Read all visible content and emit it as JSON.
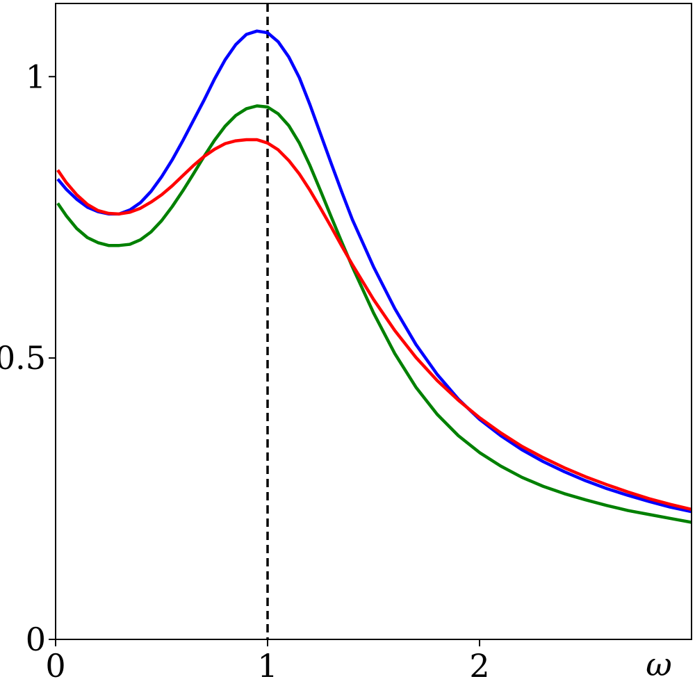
{
  "chart_data": {
    "type": "line",
    "title": "",
    "xlabel": "ω",
    "ylabel": "",
    "xlim": [
      0,
      3
    ],
    "ylim": [
      0,
      1.13
    ],
    "grid": false,
    "legend": "none",
    "x_ticks": [
      {
        "value": 0,
        "label": "0"
      },
      {
        "value": 1,
        "label": "1"
      },
      {
        "value": 2,
        "label": "2"
      }
    ],
    "y_ticks": [
      {
        "value": 0,
        "label": "0"
      },
      {
        "value": 0.5,
        "label": "0.5"
      },
      {
        "value": 1,
        "label": "1"
      }
    ],
    "reference_lines": [
      {
        "axis": "x",
        "value": 1,
        "style": "dashed",
        "color": "#000000"
      }
    ],
    "series": [
      {
        "color": "#0000ff",
        "points": [
          [
            0.01,
            0.818
          ],
          [
            0.05,
            0.8
          ],
          [
            0.1,
            0.782
          ],
          [
            0.15,
            0.768
          ],
          [
            0.2,
            0.76
          ],
          [
            0.25,
            0.756
          ],
          [
            0.3,
            0.756
          ],
          [
            0.35,
            0.763
          ],
          [
            0.4,
            0.776
          ],
          [
            0.45,
            0.796
          ],
          [
            0.5,
            0.822
          ],
          [
            0.55,
            0.852
          ],
          [
            0.6,
            0.886
          ],
          [
            0.65,
            0.922
          ],
          [
            0.7,
            0.958
          ],
          [
            0.75,
            0.996
          ],
          [
            0.8,
            1.03
          ],
          [
            0.85,
            1.057
          ],
          [
            0.9,
            1.075
          ],
          [
            0.95,
            1.081
          ],
          [
            1.0,
            1.078
          ],
          [
            1.05,
            1.062
          ],
          [
            1.1,
            1.035
          ],
          [
            1.15,
            0.998
          ],
          [
            1.2,
            0.95
          ],
          [
            1.25,
            0.898
          ],
          [
            1.3,
            0.846
          ],
          [
            1.35,
            0.795
          ],
          [
            1.4,
            0.746
          ],
          [
            1.5,
            0.662
          ],
          [
            1.6,
            0.588
          ],
          [
            1.7,
            0.524
          ],
          [
            1.8,
            0.471
          ],
          [
            1.9,
            0.427
          ],
          [
            2.0,
            0.391
          ],
          [
            2.1,
            0.362
          ],
          [
            2.2,
            0.337
          ],
          [
            2.3,
            0.316
          ],
          [
            2.4,
            0.298
          ],
          [
            2.5,
            0.282
          ],
          [
            2.6,
            0.268
          ],
          [
            2.7,
            0.256
          ],
          [
            2.8,
            0.245
          ],
          [
            2.9,
            0.235
          ],
          [
            3.0,
            0.227
          ]
        ]
      },
      {
        "color": "#008000",
        "points": [
          [
            0.01,
            0.775
          ],
          [
            0.05,
            0.753
          ],
          [
            0.1,
            0.73
          ],
          [
            0.15,
            0.714
          ],
          [
            0.2,
            0.705
          ],
          [
            0.25,
            0.7
          ],
          [
            0.3,
            0.7
          ],
          [
            0.35,
            0.702
          ],
          [
            0.4,
            0.71
          ],
          [
            0.45,
            0.724
          ],
          [
            0.5,
            0.744
          ],
          [
            0.55,
            0.769
          ],
          [
            0.6,
            0.797
          ],
          [
            0.65,
            0.827
          ],
          [
            0.7,
            0.858
          ],
          [
            0.75,
            0.887
          ],
          [
            0.8,
            0.912
          ],
          [
            0.85,
            0.931
          ],
          [
            0.9,
            0.943
          ],
          [
            0.95,
            0.948
          ],
          [
            1.0,
            0.946
          ],
          [
            1.05,
            0.934
          ],
          [
            1.1,
            0.913
          ],
          [
            1.15,
            0.882
          ],
          [
            1.2,
            0.842
          ],
          [
            1.25,
            0.797
          ],
          [
            1.3,
            0.751
          ],
          [
            1.35,
            0.706
          ],
          [
            1.4,
            0.662
          ],
          [
            1.5,
            0.58
          ],
          [
            1.6,
            0.508
          ],
          [
            1.7,
            0.448
          ],
          [
            1.8,
            0.4
          ],
          [
            1.9,
            0.362
          ],
          [
            2.0,
            0.332
          ],
          [
            2.1,
            0.308
          ],
          [
            2.2,
            0.288
          ],
          [
            2.3,
            0.272
          ],
          [
            2.4,
            0.259
          ],
          [
            2.5,
            0.248
          ],
          [
            2.6,
            0.238
          ],
          [
            2.7,
            0.229
          ],
          [
            2.8,
            0.222
          ],
          [
            2.9,
            0.215
          ],
          [
            3.0,
            0.208
          ]
        ]
      },
      {
        "color": "#ff0000",
        "points": [
          [
            0.01,
            0.834
          ],
          [
            0.05,
            0.812
          ],
          [
            0.1,
            0.79
          ],
          [
            0.15,
            0.773
          ],
          [
            0.2,
            0.762
          ],
          [
            0.25,
            0.757
          ],
          [
            0.3,
            0.756
          ],
          [
            0.35,
            0.759
          ],
          [
            0.4,
            0.766
          ],
          [
            0.45,
            0.777
          ],
          [
            0.5,
            0.79
          ],
          [
            0.55,
            0.806
          ],
          [
            0.6,
            0.824
          ],
          [
            0.65,
            0.842
          ],
          [
            0.7,
            0.858
          ],
          [
            0.75,
            0.871
          ],
          [
            0.8,
            0.881
          ],
          [
            0.85,
            0.886
          ],
          [
            0.9,
            0.888
          ],
          [
            0.95,
            0.888
          ],
          [
            1.0,
            0.882
          ],
          [
            1.05,
            0.87
          ],
          [
            1.1,
            0.851
          ],
          [
            1.15,
            0.827
          ],
          [
            1.2,
            0.798
          ],
          [
            1.25,
            0.766
          ],
          [
            1.3,
            0.733
          ],
          [
            1.35,
            0.699
          ],
          [
            1.4,
            0.666
          ],
          [
            1.5,
            0.604
          ],
          [
            1.6,
            0.549
          ],
          [
            1.7,
            0.501
          ],
          [
            1.8,
            0.46
          ],
          [
            1.9,
            0.425
          ],
          [
            2.0,
            0.394
          ],
          [
            2.1,
            0.367
          ],
          [
            2.2,
            0.343
          ],
          [
            2.3,
            0.323
          ],
          [
            2.4,
            0.305
          ],
          [
            2.5,
            0.289
          ],
          [
            2.6,
            0.275
          ],
          [
            2.7,
            0.262
          ],
          [
            2.8,
            0.25
          ],
          [
            2.9,
            0.24
          ],
          [
            3.0,
            0.231
          ]
        ]
      }
    ]
  }
}
